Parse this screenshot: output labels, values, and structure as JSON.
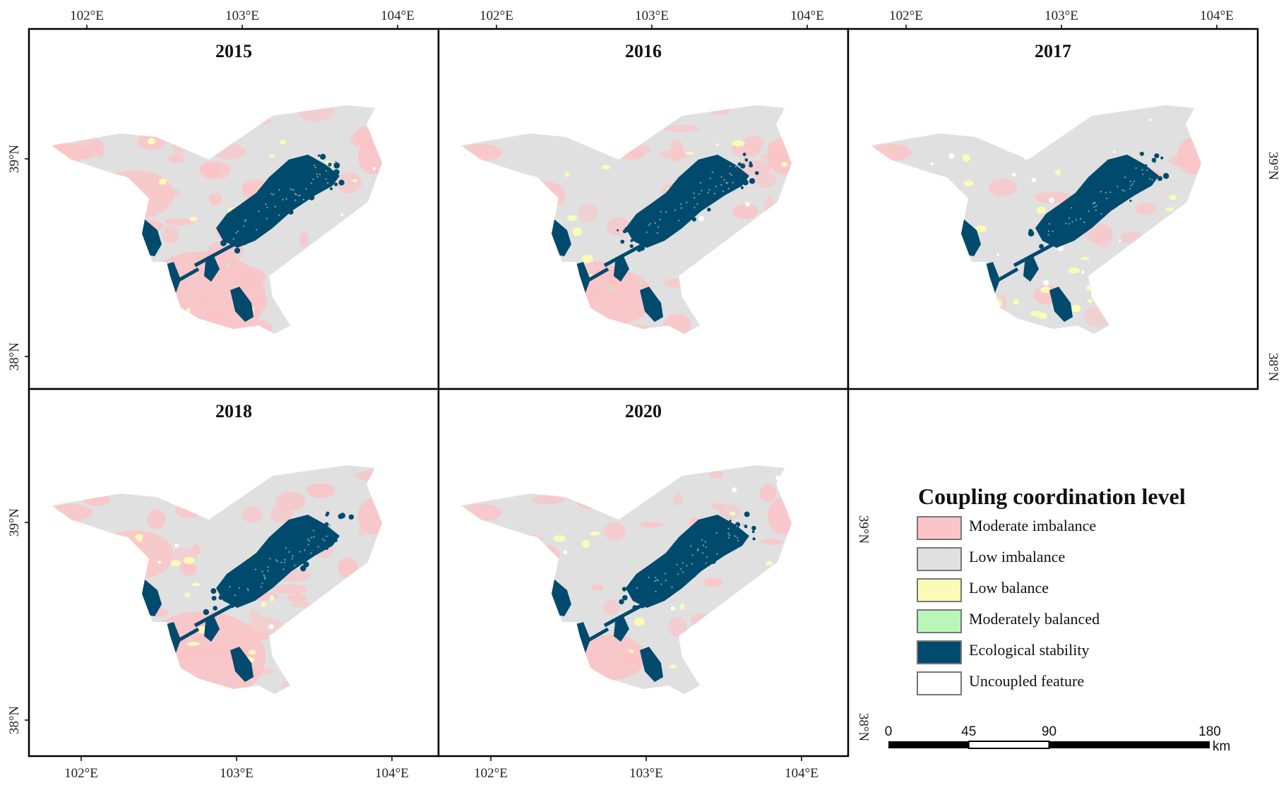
{
  "panels": [
    {
      "year": "2015",
      "variant": "a"
    },
    {
      "year": "2016",
      "variant": "b"
    },
    {
      "year": "2017",
      "variant": "c"
    },
    {
      "year": "2018",
      "variant": "a"
    },
    {
      "year": "2020",
      "variant": "d"
    }
  ],
  "axes": {
    "lon_labels": [
      "102°E",
      "103°E",
      "104°E"
    ],
    "lat_labels": [
      "39°N",
      "38°N"
    ]
  },
  "legend": {
    "title": "Coupling coordination level",
    "items": [
      {
        "label": "Moderate imbalance",
        "color": "#fbc4c6"
      },
      {
        "label": "Low imbalance",
        "color": "#e0e0e0"
      },
      {
        "label": "Low balance",
        "color": "#fbfbb8"
      },
      {
        "label": "Moderately balanced",
        "color": "#b8f7b8"
      },
      {
        "label": "Ecological stability",
        "color": "#004a6e"
      },
      {
        "label": "Uncoupled feature",
        "color": "#ffffff"
      }
    ]
  },
  "scalebar": {
    "ticks": [
      "0",
      "45",
      "90",
      "180"
    ],
    "unit": "km"
  }
}
